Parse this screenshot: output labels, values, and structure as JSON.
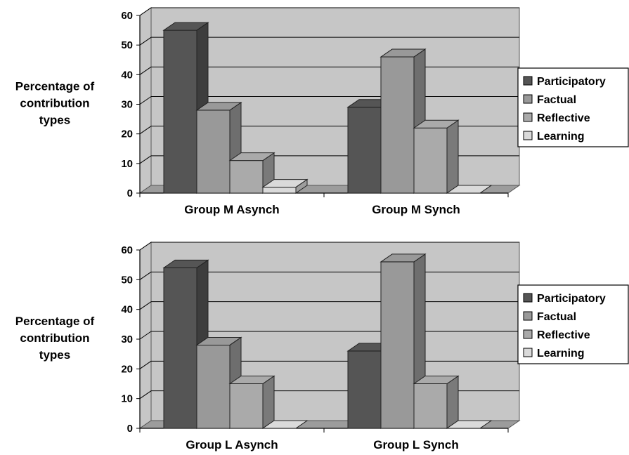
{
  "colors": {
    "wall": "#c6c6c6",
    "floor": "#9c9c9c",
    "grid": "#000000",
    "series": [
      "#555555",
      "#999999",
      "#aaaaaa",
      "#dadada"
    ]
  },
  "chart_data": [
    {
      "type": "bar",
      "subtype": "3d-clustered-column",
      "ylabel": [
        "Percentage of",
        "contribution",
        "types"
      ],
      "yticks": [
        "0",
        "10",
        "20",
        "30",
        "40",
        "50",
        "60"
      ],
      "ylim": [
        0,
        60
      ],
      "categories": [
        "Group M Asynch",
        "Group M Synch"
      ],
      "legend_position": "right",
      "series": [
        {
          "name": "Participatory",
          "values": [
            55,
            29
          ]
        },
        {
          "name": "Factual",
          "values": [
            28,
            46
          ]
        },
        {
          "name": "Reflective",
          "values": [
            11,
            22
          ]
        },
        {
          "name": "Learning",
          "values": [
            2,
            0
          ]
        }
      ]
    },
    {
      "type": "bar",
      "subtype": "3d-clustered-column",
      "ylabel": [
        "Percentage of",
        "contribution",
        "types"
      ],
      "yticks": [
        "0",
        "10",
        "20",
        "30",
        "40",
        "50",
        "60"
      ],
      "ylim": [
        0,
        60
      ],
      "categories": [
        "Group L Asynch",
        "Group L Synch"
      ],
      "legend_position": "right",
      "series": [
        {
          "name": "Participatory",
          "values": [
            54,
            26
          ]
        },
        {
          "name": "Factual",
          "values": [
            28,
            56
          ]
        },
        {
          "name": "Reflective",
          "values": [
            15,
            15
          ]
        },
        {
          "name": "Learning",
          "values": [
            0,
            0
          ]
        }
      ]
    }
  ]
}
